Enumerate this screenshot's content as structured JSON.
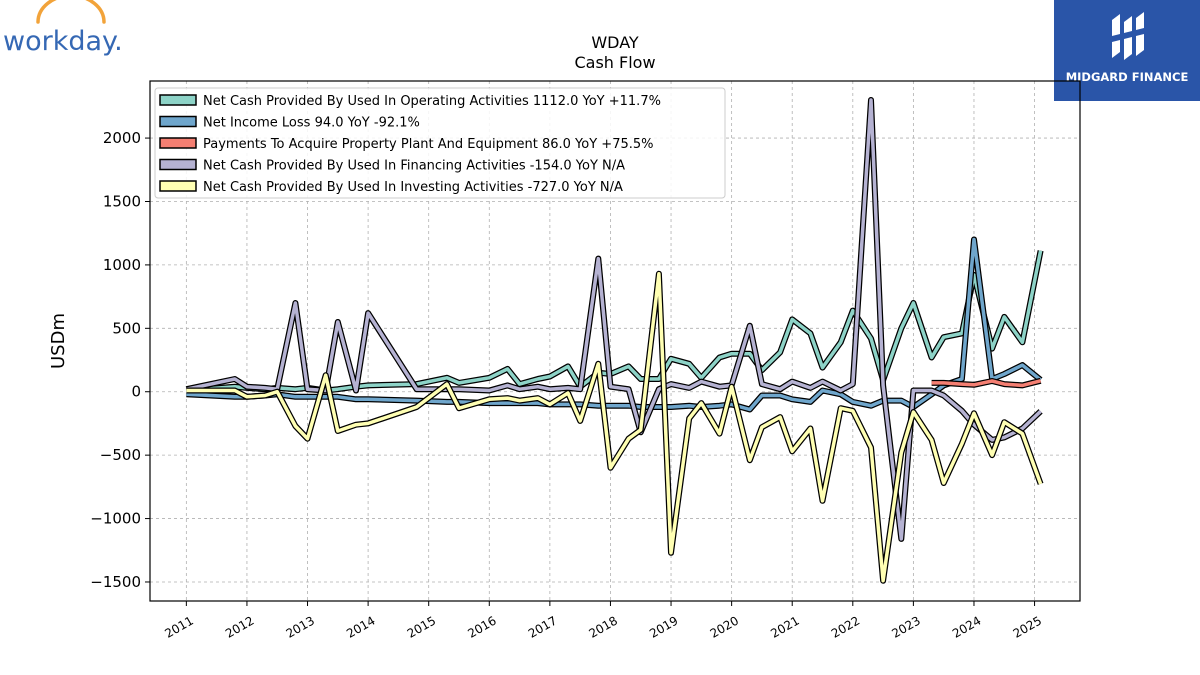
{
  "brand": {
    "left_logo_text": "workday.",
    "right_logo_text": "MIDGARD FINANCE"
  },
  "colors": {
    "operating": "#8dd3c7",
    "net_income": "#6fa6cc",
    "capex": "#f47f72",
    "financing": "#b5b2d2",
    "investing": "#ffffb3",
    "workday_blue": "#3568b4",
    "workday_orange": "#f2a33a",
    "midgard_bg": "#2a55a8"
  },
  "chart_data": {
    "type": "line",
    "title": "WDAY",
    "subtitle": "Cash Flow",
    "xlabel": "",
    "ylabel": "USDm",
    "ylim": [
      -1650,
      2450
    ],
    "xlim": [
      2010.4,
      2025.75
    ],
    "yticks": [
      -1500,
      -1000,
      -500,
      0,
      500,
      1000,
      1500,
      2000
    ],
    "yticklabels": [
      "−1500",
      "−1000",
      "−500",
      "0",
      "500",
      "1000",
      "1500",
      "2000"
    ],
    "xticks": [
      2011,
      2012,
      2013,
      2014,
      2015,
      2016,
      2017,
      2018,
      2019,
      2020,
      2021,
      2022,
      2023,
      2024,
      2025
    ],
    "xticklabels": [
      "2011",
      "2012",
      "2013",
      "2014",
      "2015",
      "2016",
      "2017",
      "2018",
      "2019",
      "2020",
      "2021",
      "2022",
      "2023",
      "2024",
      "2025"
    ],
    "grid": true,
    "legend_position": "top-left",
    "series": [
      {
        "name": "Net Cash Provided By Used In Operating Activities  1112.0 YoY +11.7%",
        "color_key": "operating",
        "points": [
          [
            2011.0,
            10
          ],
          [
            2011.8,
            40
          ],
          [
            2012.0,
            30
          ],
          [
            2012.3,
            20
          ],
          [
            2012.5,
            30
          ],
          [
            2012.8,
            20
          ],
          [
            2013.0,
            30
          ],
          [
            2013.3,
            10
          ],
          [
            2013.5,
            20
          ],
          [
            2013.8,
            40
          ],
          [
            2014.0,
            50
          ],
          [
            2014.8,
            60
          ],
          [
            2015.3,
            110
          ],
          [
            2015.5,
            70
          ],
          [
            2016.0,
            110
          ],
          [
            2016.3,
            180
          ],
          [
            2016.5,
            60
          ],
          [
            2016.8,
            100
          ],
          [
            2017.0,
            120
          ],
          [
            2017.3,
            200
          ],
          [
            2017.5,
            40
          ],
          [
            2017.8,
            150
          ],
          [
            2018.0,
            140
          ],
          [
            2018.3,
            200
          ],
          [
            2018.5,
            100
          ],
          [
            2018.8,
            100
          ],
          [
            2019.0,
            260
          ],
          [
            2019.3,
            220
          ],
          [
            2019.5,
            110
          ],
          [
            2019.8,
            270
          ],
          [
            2020.0,
            300
          ],
          [
            2020.3,
            300
          ],
          [
            2020.5,
            170
          ],
          [
            2020.8,
            310
          ],
          [
            2021.0,
            570
          ],
          [
            2021.3,
            460
          ],
          [
            2021.5,
            190
          ],
          [
            2021.8,
            390
          ],
          [
            2022.0,
            640
          ],
          [
            2022.3,
            420
          ],
          [
            2022.5,
            90
          ],
          [
            2022.8,
            500
          ],
          [
            2023.0,
            700
          ],
          [
            2023.3,
            270
          ],
          [
            2023.5,
            430
          ],
          [
            2023.8,
            460
          ],
          [
            2024.0,
            920
          ],
          [
            2024.3,
            340
          ],
          [
            2024.5,
            590
          ],
          [
            2024.8,
            390
          ],
          [
            2025.1,
            1112
          ]
        ]
      },
      {
        "name": "Net Income Loss  94.0 YoY -92.1%",
        "color_key": "net_income",
        "points": [
          [
            2011.0,
            -20
          ],
          [
            2011.8,
            -40
          ],
          [
            2012.0,
            -40
          ],
          [
            2012.3,
            -30
          ],
          [
            2012.5,
            -20
          ],
          [
            2012.8,
            -40
          ],
          [
            2013.0,
            -40
          ],
          [
            2013.3,
            -40
          ],
          [
            2013.5,
            -40
          ],
          [
            2013.8,
            -60
          ],
          [
            2014.0,
            -60
          ],
          [
            2014.8,
            -70
          ],
          [
            2015.3,
            -80
          ],
          [
            2015.5,
            -80
          ],
          [
            2016.0,
            -90
          ],
          [
            2016.3,
            -90
          ],
          [
            2016.5,
            -90
          ],
          [
            2016.8,
            -90
          ],
          [
            2017.0,
            -100
          ],
          [
            2017.3,
            -100
          ],
          [
            2017.5,
            -100
          ],
          [
            2017.8,
            -110
          ],
          [
            2018.0,
            -110
          ],
          [
            2018.3,
            -110
          ],
          [
            2018.5,
            -120
          ],
          [
            2018.8,
            -120
          ],
          [
            2019.0,
            -120
          ],
          [
            2019.3,
            -110
          ],
          [
            2019.5,
            -120
          ],
          [
            2019.8,
            -110
          ],
          [
            2020.0,
            -100
          ],
          [
            2020.3,
            -140
          ],
          [
            2020.5,
            -30
          ],
          [
            2020.8,
            -30
          ],
          [
            2021.0,
            -60
          ],
          [
            2021.3,
            -80
          ],
          [
            2021.5,
            10
          ],
          [
            2021.8,
            -20
          ],
          [
            2022.0,
            -80
          ],
          [
            2022.3,
            -110
          ],
          [
            2022.5,
            -70
          ],
          [
            2022.8,
            -70
          ],
          [
            2023.0,
            -120
          ],
          [
            2023.3,
            -20
          ],
          [
            2023.5,
            50
          ],
          [
            2023.8,
            100
          ],
          [
            2024.0,
            1200
          ],
          [
            2024.3,
            100
          ],
          [
            2024.5,
            140
          ],
          [
            2024.8,
            210
          ],
          [
            2025.1,
            94
          ]
        ]
      },
      {
        "name": "Payments To Acquire Property Plant And Equipment  86.0 YoY +75.5%",
        "color_key": "capex",
        "points": [
          [
            2023.3,
            70
          ],
          [
            2023.5,
            70
          ],
          [
            2023.8,
            60
          ],
          [
            2024.0,
            55
          ],
          [
            2024.3,
            85
          ],
          [
            2024.5,
            60
          ],
          [
            2024.8,
            50
          ],
          [
            2025.1,
            86
          ]
        ]
      },
      {
        "name": "Net Cash Provided By Used In Financing Activities  -154.0 YoY N/A",
        "color_key": "financing",
        "points": [
          [
            2011.0,
            20
          ],
          [
            2011.8,
            100
          ],
          [
            2012.0,
            40
          ],
          [
            2012.3,
            30
          ],
          [
            2012.5,
            20
          ],
          [
            2012.8,
            700
          ],
          [
            2013.0,
            20
          ],
          [
            2013.3,
            10
          ],
          [
            2013.5,
            550
          ],
          [
            2013.8,
            10
          ],
          [
            2014.0,
            620
          ],
          [
            2014.8,
            20
          ],
          [
            2015.3,
            20
          ],
          [
            2015.5,
            20
          ],
          [
            2016.0,
            10
          ],
          [
            2016.3,
            50
          ],
          [
            2016.5,
            20
          ],
          [
            2016.8,
            40
          ],
          [
            2017.0,
            20
          ],
          [
            2017.3,
            30
          ],
          [
            2017.5,
            20
          ],
          [
            2017.8,
            1050
          ],
          [
            2018.0,
            40
          ],
          [
            2018.3,
            20
          ],
          [
            2018.5,
            -320
          ],
          [
            2018.8,
            20
          ],
          [
            2019.0,
            60
          ],
          [
            2019.3,
            30
          ],
          [
            2019.5,
            80
          ],
          [
            2019.8,
            40
          ],
          [
            2020.0,
            50
          ],
          [
            2020.3,
            520
          ],
          [
            2020.5,
            60
          ],
          [
            2020.8,
            20
          ],
          [
            2021.0,
            80
          ],
          [
            2021.3,
            30
          ],
          [
            2021.5,
            80
          ],
          [
            2021.8,
            10
          ],
          [
            2022.0,
            60
          ],
          [
            2022.3,
            2300
          ],
          [
            2022.5,
            50
          ],
          [
            2022.8,
            -1160
          ],
          [
            2023.0,
            10
          ],
          [
            2023.3,
            10
          ],
          [
            2023.5,
            -30
          ],
          [
            2023.8,
            -150
          ],
          [
            2024.0,
            -260
          ],
          [
            2024.3,
            -380
          ],
          [
            2024.5,
            -360
          ],
          [
            2024.8,
            -290
          ],
          [
            2025.1,
            -154
          ]
        ]
      },
      {
        "name": "Net Cash Provided By Used In Investing Activities  -727.0 YoY N/A",
        "color_key": "investing",
        "points": [
          [
            2011.0,
            10
          ],
          [
            2011.8,
            10
          ],
          [
            2012.0,
            -40
          ],
          [
            2012.3,
            -30
          ],
          [
            2012.5,
            0
          ],
          [
            2012.8,
            -270
          ],
          [
            2013.0,
            -370
          ],
          [
            2013.3,
            130
          ],
          [
            2013.5,
            -310
          ],
          [
            2013.8,
            -260
          ],
          [
            2014.0,
            -250
          ],
          [
            2014.8,
            -120
          ],
          [
            2015.3,
            60
          ],
          [
            2015.5,
            -130
          ],
          [
            2016.0,
            -60
          ],
          [
            2016.3,
            -50
          ],
          [
            2016.5,
            -70
          ],
          [
            2016.8,
            -50
          ],
          [
            2017.0,
            -100
          ],
          [
            2017.3,
            -10
          ],
          [
            2017.5,
            -230
          ],
          [
            2017.8,
            220
          ],
          [
            2018.0,
            -600
          ],
          [
            2018.3,
            -370
          ],
          [
            2018.5,
            -300
          ],
          [
            2018.8,
            930
          ],
          [
            2019.0,
            -1270
          ],
          [
            2019.3,
            -210
          ],
          [
            2019.5,
            -90
          ],
          [
            2019.8,
            -330
          ],
          [
            2020.0,
            40
          ],
          [
            2020.3,
            -540
          ],
          [
            2020.5,
            -280
          ],
          [
            2020.8,
            -200
          ],
          [
            2021.0,
            -470
          ],
          [
            2021.3,
            -290
          ],
          [
            2021.5,
            -860
          ],
          [
            2021.8,
            -130
          ],
          [
            2022.0,
            -150
          ],
          [
            2022.3,
            -440
          ],
          [
            2022.5,
            -1490
          ],
          [
            2022.8,
            -480
          ],
          [
            2023.0,
            -160
          ],
          [
            2023.3,
            -380
          ],
          [
            2023.5,
            -720
          ],
          [
            2023.8,
            -410
          ],
          [
            2024.0,
            -170
          ],
          [
            2024.3,
            -500
          ],
          [
            2024.5,
            -240
          ],
          [
            2024.8,
            -330
          ],
          [
            2025.1,
            -727
          ]
        ]
      }
    ]
  }
}
